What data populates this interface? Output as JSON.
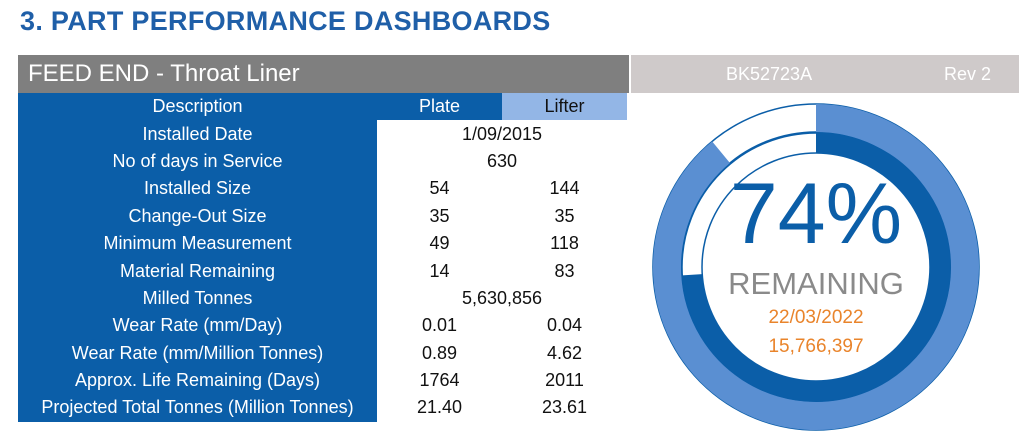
{
  "section_title": "3. PART PERFORMANCE DASHBOARDS",
  "header": {
    "part_name": "FEED END - Throat Liner",
    "part_code": "BK52723A",
    "revision": "Rev 2"
  },
  "table": {
    "columns": [
      "Description",
      "Plate",
      "Lifter"
    ],
    "rows": [
      {
        "label": "Installed Date",
        "merged": "1/09/2015"
      },
      {
        "label": "No of days in Service",
        "merged": "630"
      },
      {
        "label": "Installed Size",
        "plate": "54",
        "lifter": "144"
      },
      {
        "label": "Change-Out Size",
        "plate": "35",
        "lifter": "35"
      },
      {
        "label": "Minimum Measurement",
        "plate": "49",
        "lifter": "118"
      },
      {
        "label": "Material Remaining",
        "plate": "14",
        "lifter": "83"
      },
      {
        "label": "Milled Tonnes",
        "merged": "5,630,856"
      },
      {
        "label": "Wear Rate (mm/Day)",
        "plate": "0.01",
        "lifter": "0.04"
      },
      {
        "label": "Wear Rate (mm/Million Tonnes)",
        "plate": "0.89",
        "lifter": "4.62"
      },
      {
        "label": "Approx. Life Remaining (Days)",
        "plate": "1764",
        "lifter": "2011"
      },
      {
        "label": "Projected Total Tonnes (Million Tonnes)",
        "plate": "21.40",
        "lifter": "23.61"
      }
    ]
  },
  "gauge": {
    "outer_fraction": 0.89,
    "inner_fraction": 0.74,
    "percent_label": "74%",
    "remaining_label": "REMAINING",
    "projected_date": "22/03/2022",
    "projected_tonnes": "15,766,397",
    "colors": {
      "outer_ring": "#5a8fd2",
      "inner_ring": "#0b5ea8",
      "track_outline": "#0b5ea8",
      "text_primary": "#0b5ea8",
      "text_secondary": "#8a8a8a",
      "text_accent": "#e9842b"
    }
  }
}
